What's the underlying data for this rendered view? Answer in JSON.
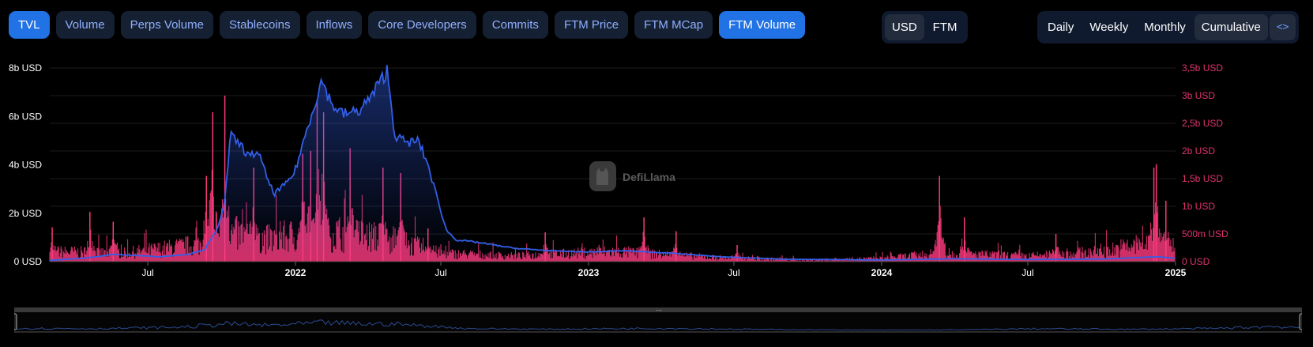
{
  "tabs": [
    {
      "label": "TVL",
      "active": true
    },
    {
      "label": "Volume",
      "active": false
    },
    {
      "label": "Perps Volume",
      "active": false
    },
    {
      "label": "Stablecoins",
      "active": false
    },
    {
      "label": "Inflows",
      "active": false
    },
    {
      "label": "Core Developers",
      "active": false
    },
    {
      "label": "Commits",
      "active": false
    },
    {
      "label": "FTM Price",
      "active": false
    },
    {
      "label": "FTM MCap",
      "active": false
    },
    {
      "label": "FTM Volume",
      "active": true
    }
  ],
  "denomination": {
    "options": [
      "USD",
      "FTM"
    ],
    "selected": "USD"
  },
  "groupby": {
    "options": [
      "Daily",
      "Weekly",
      "Monthly",
      "Cumulative"
    ],
    "selected": "Cumulative",
    "embed_icon": "code-icon"
  },
  "watermark": {
    "text": "DefiLlama"
  },
  "colors": {
    "tvl": "#335fe8",
    "volume": "#e0336f",
    "active_tab": "#2172e5"
  },
  "chart_data": {
    "type": "line",
    "x_range": [
      "2021-03-01",
      "2025-01-01"
    ],
    "x_ticks": [
      {
        "label": "Jul",
        "date": "2021-07-01",
        "bold": false
      },
      {
        "label": "2022",
        "date": "2022-01-01",
        "bold": true
      },
      {
        "label": "Jul",
        "date": "2022-07-01",
        "bold": false
      },
      {
        "label": "2023",
        "date": "2023-01-01",
        "bold": true
      },
      {
        "label": "Jul",
        "date": "2023-07-01",
        "bold": false
      },
      {
        "label": "2024",
        "date": "2024-01-01",
        "bold": true
      },
      {
        "label": "Jul",
        "date": "2024-07-01",
        "bold": false
      },
      {
        "label": "2025",
        "date": "2025-01-01",
        "bold": true
      }
    ],
    "y_left": {
      "ticks": [
        "0 USD",
        "2b USD",
        "4b USD",
        "6b USD",
        "8b USD"
      ],
      "max": 8
    },
    "y_right": {
      "ticks": [
        "0 USD",
        "500m USD",
        "1b USD",
        "1,5b USD",
        "2b USD",
        "2,5b USD",
        "3b USD",
        "3,5b USD"
      ],
      "max": 3.5
    },
    "grid": true,
    "series": [
      {
        "name": "TVL",
        "type": "area",
        "axis": "left",
        "unit": "b USD",
        "points": [
          [
            "2021-03-01",
            0.05
          ],
          [
            "2021-04-15",
            0.15
          ],
          [
            "2021-05-20",
            0.3
          ],
          [
            "2021-06-20",
            0.25
          ],
          [
            "2021-07-15",
            0.2
          ],
          [
            "2021-08-20",
            0.3
          ],
          [
            "2021-09-10",
            0.5
          ],
          [
            "2021-09-25",
            1.3
          ],
          [
            "2021-10-05",
            2.5
          ],
          [
            "2021-10-12",
            5.2
          ],
          [
            "2021-10-25",
            4.8
          ],
          [
            "2021-11-05",
            4.3
          ],
          [
            "2021-11-15",
            4.6
          ],
          [
            "2021-11-25",
            3.6
          ],
          [
            "2021-12-05",
            2.8
          ],
          [
            "2021-12-20",
            3.2
          ],
          [
            "2021-12-31",
            3.7
          ],
          [
            "2022-01-20",
            6.0
          ],
          [
            "2022-02-03",
            7.5
          ],
          [
            "2022-02-15",
            6.5
          ],
          [
            "2022-03-01",
            6.1
          ],
          [
            "2022-03-20",
            6.2
          ],
          [
            "2022-04-05",
            6.8
          ],
          [
            "2022-04-25",
            7.9
          ],
          [
            "2022-05-05",
            5.2
          ],
          [
            "2022-05-20",
            4.9
          ],
          [
            "2022-06-03",
            5.0
          ],
          [
            "2022-06-15",
            4.0
          ],
          [
            "2022-06-25",
            2.8
          ],
          [
            "2022-07-08",
            1.3
          ],
          [
            "2022-07-20",
            0.9
          ],
          [
            "2022-08-15",
            0.8
          ],
          [
            "2022-10-01",
            0.55
          ],
          [
            "2022-11-15",
            0.45
          ],
          [
            "2023-01-01",
            0.4
          ],
          [
            "2023-02-15",
            0.45
          ],
          [
            "2023-04-15",
            0.35
          ],
          [
            "2023-06-15",
            0.2
          ],
          [
            "2023-09-01",
            0.1
          ],
          [
            "2024-01-01",
            0.07
          ],
          [
            "2024-04-01",
            0.12
          ],
          [
            "2024-07-01",
            0.09
          ],
          [
            "2024-10-01",
            0.11
          ],
          [
            "2024-12-10",
            0.2
          ],
          [
            "2025-01-01",
            0.14
          ]
        ]
      },
      {
        "name": "FTM Volume",
        "type": "bar",
        "axis": "right",
        "unit": "b USD",
        "peaks": [
          [
            "2021-03-04",
            0.62
          ],
          [
            "2021-04-20",
            0.9
          ],
          [
            "2021-05-19",
            0.72
          ],
          [
            "2021-09-12",
            1.55
          ],
          [
            "2021-09-20",
            2.7
          ],
          [
            "2021-10-05",
            3.0
          ],
          [
            "2021-11-10",
            1.7
          ],
          [
            "2022-01-10",
            1.95
          ],
          [
            "2022-01-20",
            2.0
          ],
          [
            "2022-01-28",
            2.9
          ],
          [
            "2022-02-05",
            2.7
          ],
          [
            "2022-03-10",
            2.05
          ],
          [
            "2022-04-20",
            1.7
          ],
          [
            "2022-05-12",
            1.6
          ],
          [
            "2022-06-15",
            0.6
          ],
          [
            "2022-11-08",
            0.53
          ],
          [
            "2023-03-11",
            0.8
          ],
          [
            "2023-04-20",
            0.55
          ],
          [
            "2023-07-05",
            0.3
          ],
          [
            "2024-03-13",
            1.55
          ],
          [
            "2024-04-13",
            0.8
          ],
          [
            "2024-08-05",
            0.5
          ],
          [
            "2024-12-05",
            1.7
          ],
          [
            "2024-12-08",
            1.76
          ],
          [
            "2024-12-20",
            1.1
          ]
        ],
        "baseline": [
          [
            "2021-03-01",
            0.18
          ],
          [
            "2021-06-01",
            0.15
          ],
          [
            "2021-09-01",
            0.3
          ],
          [
            "2021-10-15",
            0.5
          ],
          [
            "2021-12-01",
            0.4
          ],
          [
            "2022-02-01",
            0.55
          ],
          [
            "2022-05-01",
            0.4
          ],
          [
            "2022-07-01",
            0.15
          ],
          [
            "2022-10-01",
            0.1
          ],
          [
            "2023-02-01",
            0.18
          ],
          [
            "2023-06-01",
            0.08
          ],
          [
            "2023-10-01",
            0.03
          ],
          [
            "2024-01-01",
            0.06
          ],
          [
            "2024-03-15",
            0.15
          ],
          [
            "2024-07-01",
            0.1
          ],
          [
            "2024-10-01",
            0.18
          ],
          [
            "2024-12-01",
            0.35
          ],
          [
            "2025-01-01",
            0.25
          ]
        ]
      }
    ]
  }
}
